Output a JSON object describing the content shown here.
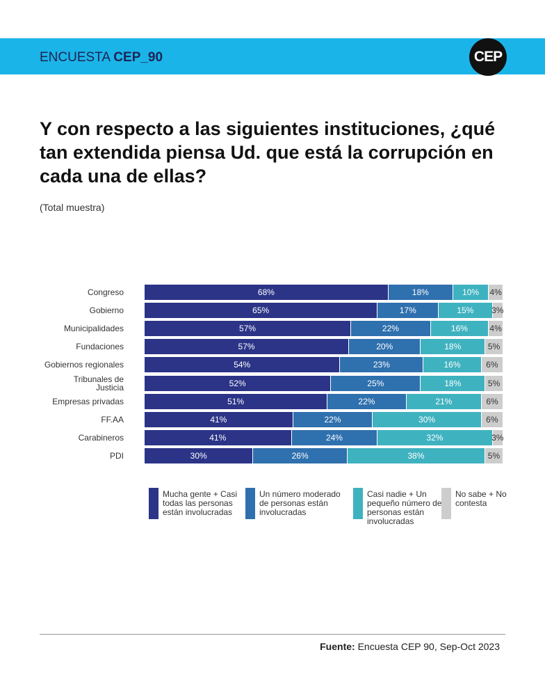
{
  "header": {
    "brand": "ENCUESTA",
    "survey": "CEP_90",
    "logo": "CEP"
  },
  "chart_data": {
    "type": "stacked-bar-horizontal",
    "title": "Y con respecto a las siguientes instituciones, ¿qué tan extendida piensa Ud. que está la corrupción en cada una de ellas?",
    "subtitle": "(Total muestra)",
    "categories": [
      "Congreso",
      "Gobierno",
      "Municipalidades",
      "Fundaciones",
      "Gobiernos regionales",
      "Tribunales de\nJusticia",
      "Empresas privadas",
      "FF.AA",
      "Carabineros",
      "PDI"
    ],
    "series": [
      {
        "name": "Mucha gente + Casi todas las personas están involucradas",
        "color": "#2b3487",
        "values": [
          68,
          65,
          57,
          57,
          54,
          52,
          51,
          41,
          41,
          30
        ],
        "value_labels": [
          "68%",
          "65%",
          "57%",
          "57%",
          "54%",
          "52%",
          "51%",
          "41%",
          "41%",
          "30%"
        ]
      },
      {
        "name": "Un número moderado de personas están involucradas",
        "color": "#2f70ae",
        "values": [
          18,
          17,
          22,
          20,
          23,
          25,
          22,
          22,
          24,
          26
        ],
        "value_labels": [
          "18%",
          "17%",
          "22%",
          "20%",
          "23%",
          "25%",
          "22%",
          "22%",
          "24%",
          "26%"
        ]
      },
      {
        "name": "Casi nadie + Un pequeño número de personas están involucradas",
        "color": "#3fb2c0",
        "values": [
          10,
          15,
          16,
          18,
          16,
          18,
          21,
          30,
          32,
          38
        ],
        "value_labels": [
          "10%",
          "15%",
          "16%",
          "18%",
          "16%",
          "18%",
          "21%",
          "30%",
          "32%",
          "38%"
        ]
      },
      {
        "name": "No sabe + No contesta",
        "color": "#cdcdcd",
        "values": [
          4,
          3,
          4,
          5,
          6,
          5,
          6,
          6,
          3,
          5
        ],
        "value_labels": [
          "4%",
          "3%",
          "4%",
          "5%",
          "6%",
          "5%",
          "6%",
          "6%",
          "3%",
          "5%"
        ]
      }
    ]
  },
  "source": {
    "label": "Fuente:",
    "text": "Encuesta CEP 90, Sep-Oct 2023"
  }
}
